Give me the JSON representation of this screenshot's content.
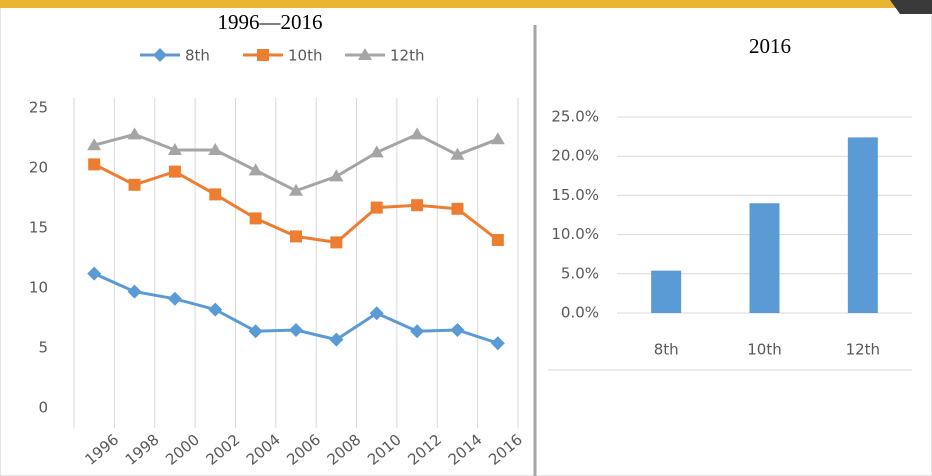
{
  "chart_data": [
    {
      "type": "line",
      "title": "1996—2016",
      "categories": [
        "1996",
        "1998",
        "2000",
        "2002",
        "2004",
        "2006",
        "2008",
        "2010",
        "2012",
        "2014",
        "2016"
      ],
      "series": [
        {
          "name": "8th",
          "color": "#5b9bd5",
          "marker": "diamond",
          "values": [
            11.2,
            9.7,
            9.1,
            8.2,
            6.4,
            6.5,
            5.7,
            7.9,
            6.4,
            6.5,
            5.4
          ]
        },
        {
          "name": "10th",
          "color": "#ed7d31",
          "marker": "square",
          "values": [
            20.3,
            18.6,
            19.7,
            17.8,
            15.8,
            14.3,
            13.8,
            16.7,
            16.9,
            16.6,
            14.0
          ]
        },
        {
          "name": "12th",
          "color": "#a5a5a5",
          "marker": "triangle",
          "values": [
            21.9,
            22.8,
            21.5,
            21.5,
            19.8,
            18.1,
            19.3,
            21.3,
            22.8,
            21.1,
            22.4
          ]
        }
      ],
      "ylim": [
        0,
        25
      ],
      "yticks": [
        0,
        5,
        10,
        15,
        20,
        25
      ],
      "grid": "x",
      "legend": "top"
    },
    {
      "type": "bar",
      "title": "2016",
      "categories": [
        "8th",
        "10th",
        "12th"
      ],
      "values": [
        5.4,
        14.0,
        22.4
      ],
      "color": "#5b9bd5",
      "ylim": [
        0,
        25
      ],
      "yticks": [
        {
          "value": 0,
          "label": "0.0%"
        },
        {
          "value": 5,
          "label": "5.0%"
        },
        {
          "value": 10,
          "label": "10.0%"
        },
        {
          "value": 15,
          "label": "15.0%"
        },
        {
          "value": 20,
          "label": "20.0%"
        },
        {
          "value": 25,
          "label": "25.0%"
        }
      ],
      "grid": "y"
    }
  ]
}
